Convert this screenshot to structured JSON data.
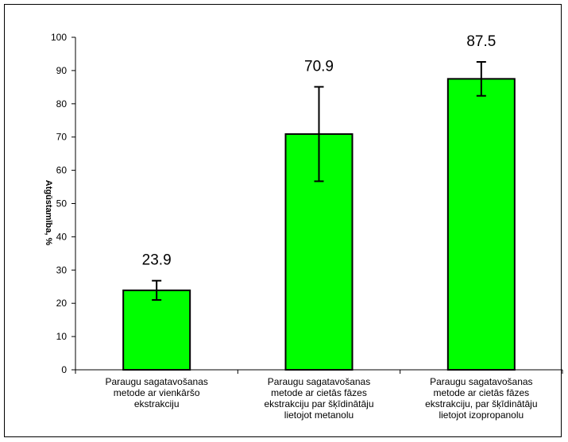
{
  "chart_data": {
    "type": "bar",
    "categories": [
      [
        "Paraugu sagatavošanas",
        "metode ar vienkāršo",
        "ekstrakciju"
      ],
      [
        "Paraugu sagatavošanas",
        "metode ar cietās fāzes",
        "ekstrakciju par šķīdinātāju",
        "lietojot metanolu"
      ],
      [
        "Paraugu sagatavošanas",
        "metode ar cietās fāzes",
        "ekstrakciju, par šķīdinātāju",
        "lietojot izopropanolu"
      ]
    ],
    "values": [
      23.9,
      70.9,
      87.5
    ],
    "value_labels": [
      "23.9",
      "70.9",
      "87.5"
    ],
    "error_low": [
      21.0,
      56.7,
      82.4
    ],
    "error_high": [
      26.8,
      85.1,
      92.6
    ],
    "ylim": [
      0,
      100
    ],
    "yticks": [
      0,
      10,
      20,
      30,
      40,
      50,
      60,
      70,
      80,
      90,
      100
    ],
    "ylabel": "Atgūstamība, %",
    "xlabel": "",
    "title": "",
    "bar_color": "#00ff00",
    "bar_outline": "#000000",
    "grid": false,
    "legend": "none"
  }
}
